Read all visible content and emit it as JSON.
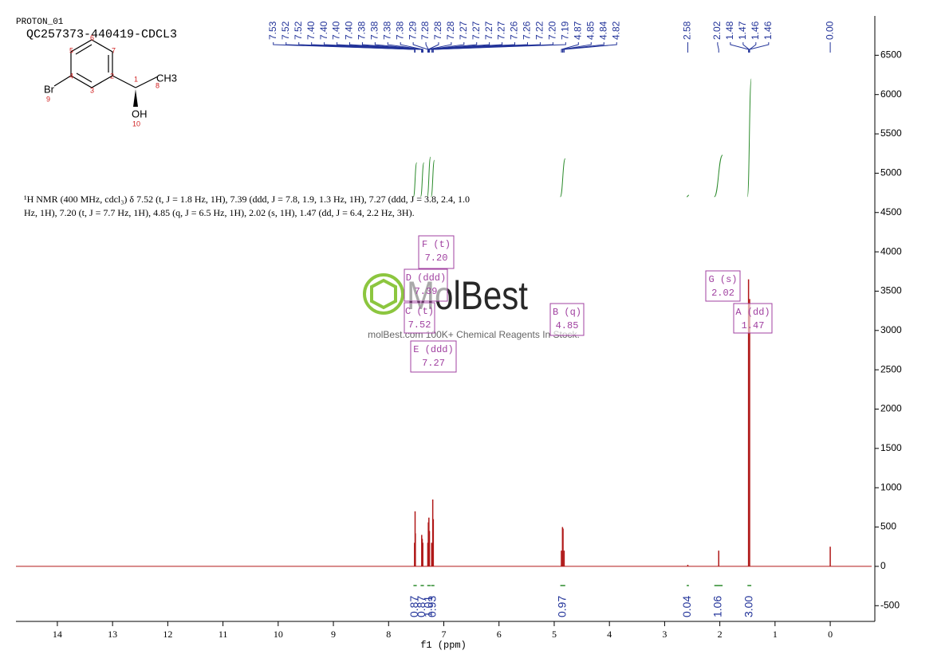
{
  "chart_data": {
    "type": "spectrum",
    "title": "PROTON_01",
    "subtitle": "QC257373-440419-CDCL3",
    "description": "¹H NMR (400 MHz, cdcl₃) δ 7.52 (t, J = 1.8 Hz, 1H), 7.39 (ddd, J = 7.8, 1.9, 1.3 Hz, 1H), 7.27 (ddd, J = 3.8, 2.4, 1.0 Hz, 1H), 7.20 (t, J = 7.7 Hz, 1H), 4.85 (q, J = 6.5 Hz, 1H), 2.02 (s, 1H), 1.47 (dd, J = 6.4, 2.2 Hz, 3H).",
    "xlabel": "f1 (ppm)",
    "xlim": [
      14.75,
      -0.75
    ],
    "xticks": [
      14,
      13,
      12,
      11,
      10,
      9,
      8,
      7,
      6,
      5,
      4,
      3,
      2,
      1,
      0
    ],
    "ylim": [
      -700,
      7000
    ],
    "yticks": [
      -500,
      0,
      500,
      1000,
      1500,
      2000,
      2500,
      3000,
      3500,
      4000,
      4500,
      5000,
      5500,
      6000,
      6500
    ],
    "color": "#b01818",
    "peaks": {
      "x": [
        7.53,
        7.52,
        7.515,
        7.4,
        7.39,
        7.38,
        7.29,
        7.28,
        7.27,
        7.26,
        7.22,
        7.2,
        7.19,
        4.87,
        4.85,
        4.84,
        4.82,
        2.58,
        2.02,
        1.48,
        1.46,
        0
      ],
      "values": [
        300,
        700,
        420,
        400,
        350,
        300,
        300,
        560,
        620,
        450,
        300,
        850,
        600,
        200,
        500,
        480,
        200,
        20,
        200,
        3650,
        3400,
        250
      ]
    },
    "peak_labels": [
      7.53,
      7.52,
      7.52,
      {
        "value": 7.4,
        "label": "7.40"
      },
      {
        "value": 7.4,
        "label": "7.40"
      },
      {
        "value": 7.4,
        "label": "7.40"
      },
      {
        "value": 7.4,
        "label": "7.40"
      },
      7.38,
      7.38,
      7.38,
      7.38,
      7.29,
      7.28,
      7.28,
      7.28,
      7.27,
      7.27,
      7.27,
      7.27,
      7.26,
      7.26,
      7.22,
      {
        "value": 7.2,
        "label": "7.20"
      },
      7.19,
      4.87,
      4.85,
      4.84,
      4.82,
      2.58,
      2.02,
      1.48,
      1.47,
      1.46,
      1.46,
      {
        "value": 0,
        "label": "0.00"
      }
    ],
    "integrals": {
      "ranges": [
        [
          7.55,
          7.49
        ],
        [
          7.42,
          7.36
        ],
        [
          7.3,
          7.24
        ],
        [
          7.23,
          7.17
        ],
        [
          4.89,
          4.8
        ],
        [
          2.6,
          2.56
        ],
        [
          2.1,
          1.95
        ],
        [
          1.5,
          1.43
        ]
      ],
      "values": [
        0.87,
        0.87,
        1.01,
        0.93,
        0.97,
        0.04,
        1.06,
        3
      ],
      "value_labels": [
        "0.87",
        "0.87",
        "1.01",
        "0.93",
        "0.97",
        "0.04",
        "1.06",
        "3.00"
      ]
    },
    "multiplets": {
      "names": [
        "A (dd)",
        "B (q)",
        "C (t)",
        "D (ddd)",
        "E (ddd)",
        "F (t)",
        "G (s)"
      ],
      "shifts": [
        1.47,
        4.85,
        7.52,
        7.39,
        7.27,
        {
          "value": 7.2,
          "label": "7.20"
        },
        2.02
      ]
    },
    "molecule": {
      "atoms": [
        "Br",
        "CH3",
        "OH"
      ],
      "locants": [
        1,
        2,
        3,
        4,
        5,
        6,
        7,
        8,
        9,
        10
      ]
    },
    "watermark": {
      "brand": "MolBest",
      "tagline": "molBest.com 100K+ Chemical Reagents In Stock."
    }
  }
}
